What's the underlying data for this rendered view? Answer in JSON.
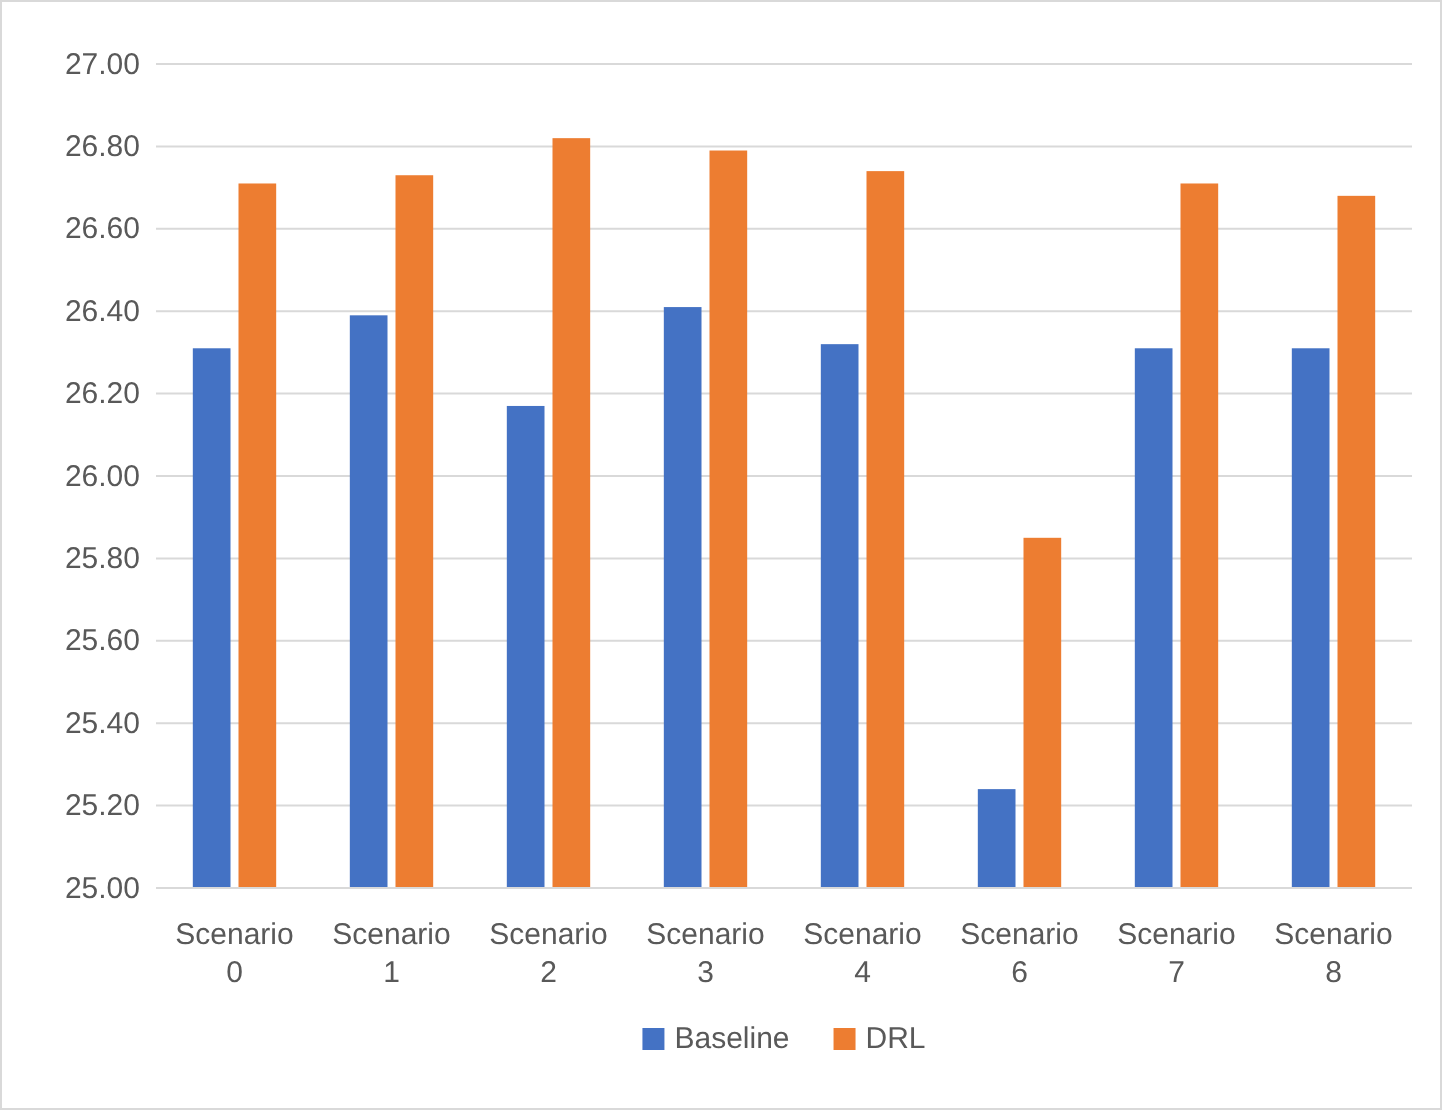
{
  "chart_data": {
    "type": "bar",
    "categories": [
      "Scenario 0",
      "Scenario 1",
      "Scenario 2",
      "Scenario 3",
      "Scenario 4",
      "Scenario 6",
      "Scenario 7",
      "Scenario 8"
    ],
    "series": [
      {
        "name": "Baseline",
        "color": "#4472c4",
        "values": [
          26.31,
          26.39,
          26.17,
          26.41,
          26.32,
          25.24,
          26.31,
          26.31
        ]
      },
      {
        "name": "DRL",
        "color": "#ed7d31",
        "values": [
          26.71,
          26.73,
          26.82,
          26.79,
          26.74,
          25.85,
          26.71,
          26.68
        ]
      }
    ],
    "ylim": [
      25,
      27
    ],
    "yticks": [
      {
        "value": 25,
        "label": "25.00"
      },
      {
        "value": 25.2,
        "label": "25.20"
      },
      {
        "value": 25.4,
        "label": "25.40"
      },
      {
        "value": 25.6,
        "label": "25.60"
      },
      {
        "value": 25.8,
        "label": "25.80"
      },
      {
        "value": 26,
        "label": "26.00"
      },
      {
        "value": 26.2,
        "label": "26.20"
      },
      {
        "value": 26.4,
        "label": "26.40"
      },
      {
        "value": 26.6,
        "label": "26.60"
      },
      {
        "value": 26.8,
        "label": "26.80"
      },
      {
        "value": 27,
        "label": "27.00"
      }
    ],
    "grid": "y",
    "legend": "bottom"
  }
}
